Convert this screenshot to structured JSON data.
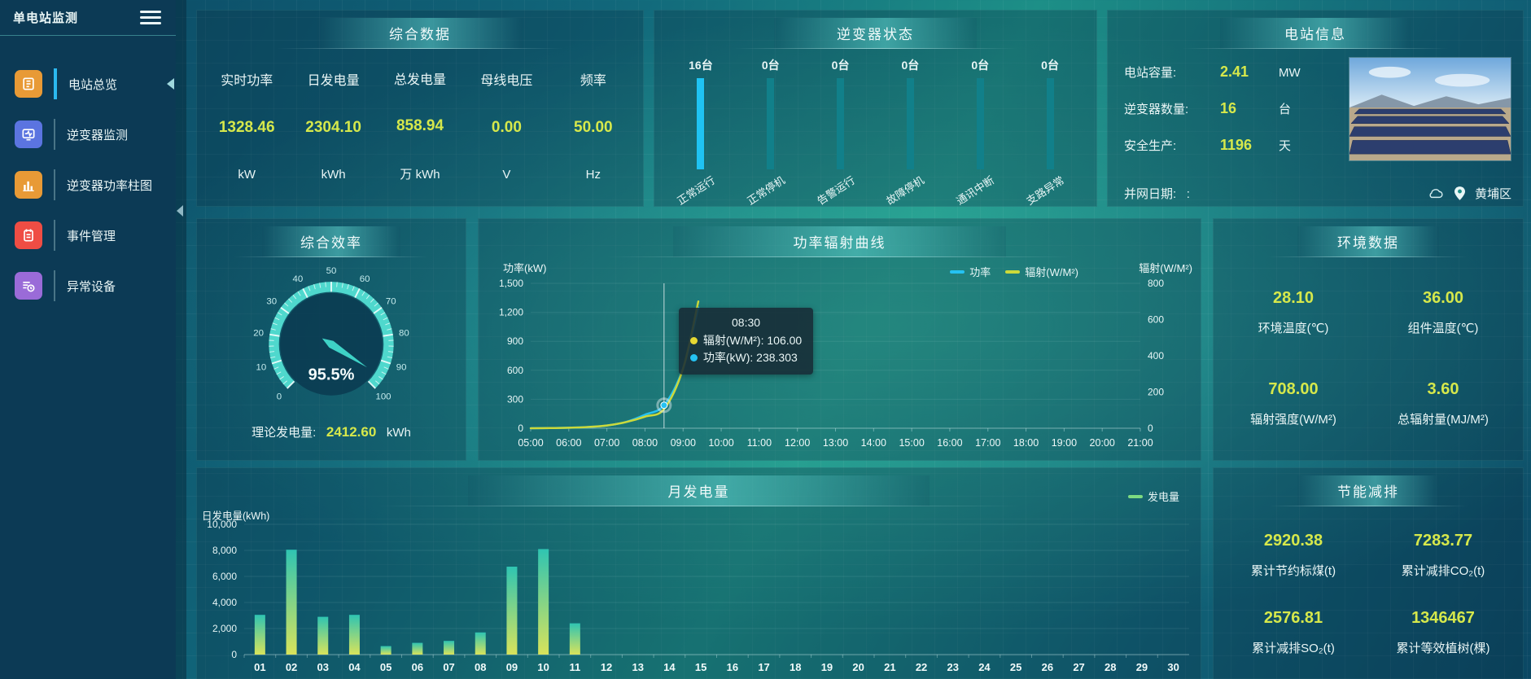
{
  "app": {
    "title": "单电站监测"
  },
  "sidebar": {
    "items": [
      {
        "label": "电站总览",
        "active": true
      },
      {
        "label": "逆变器监测",
        "active": false
      },
      {
        "label": "逆变器功率柱图",
        "active": false
      },
      {
        "label": "事件管理",
        "active": false
      },
      {
        "label": "异常设备",
        "active": false
      }
    ]
  },
  "summary": {
    "title": "综合数据",
    "metrics": [
      {
        "label": "实时功率",
        "value": "1328.46",
        "unit": "kW"
      },
      {
        "label": "日发电量",
        "value": "2304.10",
        "unit": "kWh"
      },
      {
        "label": "总发电量",
        "value": "858.94",
        "unit": "万 kWh"
      },
      {
        "label": "母线电压",
        "value": "0.00",
        "unit": "V"
      },
      {
        "label": "频率",
        "value": "50.00",
        "unit": "Hz"
      }
    ]
  },
  "inverter_status": {
    "title": "逆变器状态",
    "bars": [
      {
        "count": "16台",
        "label": "正常运行",
        "highlight": true
      },
      {
        "count": "0台",
        "label": "正常停机",
        "highlight": false
      },
      {
        "count": "0台",
        "label": "告警运行",
        "highlight": false
      },
      {
        "count": "0台",
        "label": "故障停机",
        "highlight": false
      },
      {
        "count": "0台",
        "label": "通讯中断",
        "highlight": false
      },
      {
        "count": "0台",
        "label": "支路异常",
        "highlight": false
      }
    ],
    "bar_colors": {
      "highlight": "#1fc3f3",
      "normal": "#11808a"
    }
  },
  "station_info": {
    "title": "电站信息",
    "rows": [
      {
        "label": "电站容量:",
        "value": "2.41",
        "unit": "MW"
      },
      {
        "label": "逆变器数量:",
        "value": "16",
        "unit": "台"
      },
      {
        "label": "安全生产:",
        "value": "1196",
        "unit": "天"
      }
    ],
    "grid_date_label": "并网日期:",
    "grid_date_value": ":",
    "location": "黄埔区"
  },
  "efficiency": {
    "title": "综合效率",
    "percent": 95.5,
    "value_label": "95.5%",
    "ticks": [
      "0",
      "10",
      "20",
      "30",
      "40",
      "50",
      "60",
      "70",
      "80",
      "90",
      "100"
    ],
    "footer": {
      "label": "理论发电量:",
      "value": "2412.60",
      "unit": "kWh"
    }
  },
  "environment": {
    "title": "环境数据",
    "metrics": [
      {
        "value": "28.10",
        "label": "环境温度(℃)"
      },
      {
        "value": "36.00",
        "label": "组件温度(℃)"
      },
      {
        "value": "708.00",
        "label": "辐射强度(W/M²)"
      },
      {
        "value": "3.60",
        "label": "总辐射量(MJ/M²)"
      }
    ]
  },
  "savings": {
    "title": "节能减排",
    "metrics": [
      {
        "value": "2920.38",
        "label": "累计节约标煤(t)"
      },
      {
        "value": "7283.77",
        "label": "累计减排CO₂(t)"
      },
      {
        "value": "2576.81",
        "label": "累计减排SO₂(t)"
      },
      {
        "value": "1346467",
        "label": "累计等效植树(棵)"
      }
    ]
  },
  "chart_data": [
    {
      "id": "power_radiation",
      "type": "line",
      "title": "功率辐射曲线",
      "ylabel_left": "功率(kW)",
      "ylabel_right": "辐射(W/M²)",
      "ylim_left": [
        0,
        1500
      ],
      "ylim_right": [
        0,
        800
      ],
      "yticks_left": [
        "0",
        "300",
        "600",
        "900",
        "1,200",
        "1,500"
      ],
      "yticks_right": [
        "0",
        "200",
        "400",
        "600",
        "800"
      ],
      "x_ticks": [
        "05:00",
        "06:00",
        "07:00",
        "08:00",
        "09:00",
        "10:00",
        "11:00",
        "12:00",
        "13:00",
        "14:00",
        "15:00",
        "16:00",
        "17:00",
        "18:00",
        "19:00",
        "20:00",
        "21:00"
      ],
      "x_range": [
        5,
        21
      ],
      "legend": [
        {
          "name": "功率",
          "color": "#25c2f2"
        },
        {
          "name": "辐射(W/M²)",
          "color": "#ccd93a"
        }
      ],
      "series": [
        {
          "name": "功率",
          "axis": "left",
          "color": "#25c2f2",
          "x": [
            5,
            5.5,
            6,
            6.5,
            7,
            7.5,
            8,
            8.5,
            9,
            9.4
          ],
          "values": [
            0,
            2,
            5,
            12,
            28,
            65,
            140,
            238.3,
            620,
            1250
          ]
        },
        {
          "name": "辐射(W/M²)",
          "axis": "right",
          "color": "#ccd93a",
          "x": [
            5,
            5.5,
            6,
            6.5,
            7,
            7.5,
            8,
            8.5,
            9,
            9.4
          ],
          "values": [
            0,
            1,
            3,
            7,
            15,
            34,
            64,
            106,
            330,
            700
          ]
        }
      ],
      "hover": {
        "x": 8.5,
        "label": "08:30",
        "marker_series": 0,
        "marker_value": 238.3,
        "rows": [
          {
            "text": "辐射(W/M²): 106.00",
            "color": "#e6d832"
          },
          {
            "text": "功率(kW): 238.303",
            "color": "#25c2f2"
          }
        ]
      }
    },
    {
      "id": "monthly_generation",
      "type": "bar",
      "title": "月发电量",
      "ylabel": "日发电量(kWh)",
      "ylim": [
        0,
        10000
      ],
      "yticks": [
        "0",
        "2,000",
        "4,000",
        "6,000",
        "8,000",
        "10,000"
      ],
      "categories": [
        "01",
        "02",
        "03",
        "04",
        "05",
        "06",
        "07",
        "08",
        "09",
        "10",
        "11",
        "12",
        "13",
        "14",
        "15",
        "16",
        "17",
        "18",
        "19",
        "20",
        "21",
        "22",
        "23",
        "24",
        "25",
        "26",
        "27",
        "28",
        "29",
        "30"
      ],
      "values": [
        3050,
        8050,
        2900,
        3050,
        650,
        900,
        1050,
        1700,
        6750,
        8100,
        2400,
        0,
        0,
        0,
        0,
        0,
        0,
        0,
        0,
        0,
        0,
        0,
        0,
        0,
        0,
        0,
        0,
        0,
        0,
        0
      ],
      "legend": [
        {
          "name": "发电量",
          "color": "#7ddb81"
        }
      ],
      "bar_gradient": [
        "#2fc4b2",
        "#d8e35b"
      ]
    }
  ],
  "colors": {
    "value_yellow": "#d6e84b",
    "gauge": "#4fd8cd",
    "axis_text": "#e8f6f6"
  }
}
